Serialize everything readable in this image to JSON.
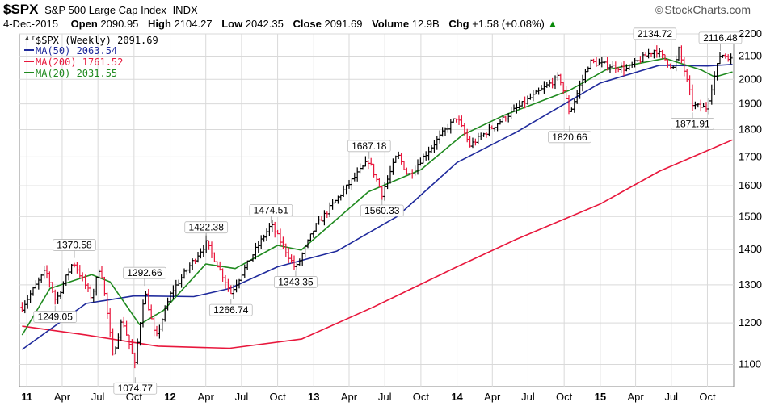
{
  "header": {
    "symbol": "$SPX",
    "name": "S&P 500 Large Cap Index",
    "exchange": "INDX",
    "date": "4-Dec-2015",
    "open_label": "Open",
    "open": "2090.95",
    "high_label": "High",
    "high": "2104.27",
    "low_label": "Low",
    "low": "2042.35",
    "close_label": "Close",
    "close": "2091.69",
    "volume_label": "Volume",
    "volume": "12.9B",
    "chg_label": "Chg",
    "chg": "+1.58 (+0.08%)",
    "chg_arrow": "▲"
  },
  "brand": {
    "text": "StockCharts.com",
    "icon": "copyright-icon"
  },
  "colors": {
    "up": "#000000",
    "down": "#e8173c",
    "ma50": "#1f2a9c",
    "ma200": "#e8173c",
    "ma20": "#1f8a1f",
    "grid": "#d9d9d9",
    "chg_up": "#0a8a0a"
  },
  "legend": [
    {
      "label": "$SPX (Weekly) 2091.69",
      "icon": "candlestick-icon"
    },
    {
      "label": "MA(50) 2063.54",
      "icon": "line-swatch-icon"
    },
    {
      "label": "MA(200) 1761.52",
      "icon": "line-swatch-icon"
    },
    {
      "label": "MA(20) 2031.55",
      "icon": "line-swatch-icon"
    }
  ],
  "chart_data": {
    "type": "candlestick",
    "scale": "log",
    "ylim": [
      1050,
      2200
    ],
    "xlim": [
      "2010-12-13",
      "2015-12-07"
    ],
    "y_ticks": [
      1100,
      1200,
      1300,
      1400,
      1500,
      1600,
      1700,
      1800,
      1900,
      2000,
      2100,
      2200
    ],
    "x_ticks": [
      {
        "label": "11",
        "date": "2011-01-01",
        "bold": true
      },
      {
        "label": "Apr",
        "date": "2011-04-01"
      },
      {
        "label": "Jul",
        "date": "2011-07-01"
      },
      {
        "label": "Oct",
        "date": "2011-10-01"
      },
      {
        "label": "12",
        "date": "2012-01-01",
        "bold": true
      },
      {
        "label": "Apr",
        "date": "2012-04-01"
      },
      {
        "label": "Jul",
        "date": "2012-07-01"
      },
      {
        "label": "Oct",
        "date": "2012-10-01"
      },
      {
        "label": "13",
        "date": "2013-01-01",
        "bold": true
      },
      {
        "label": "Apr",
        "date": "2013-04-01"
      },
      {
        "label": "Jul",
        "date": "2013-07-01"
      },
      {
        "label": "Oct",
        "date": "2013-10-01"
      },
      {
        "label": "14",
        "date": "2014-01-01",
        "bold": true
      },
      {
        "label": "Apr",
        "date": "2014-04-01"
      },
      {
        "label": "Jul",
        "date": "2014-07-01"
      },
      {
        "label": "Oct",
        "date": "2014-10-01"
      },
      {
        "label": "15",
        "date": "2015-01-01",
        "bold": true
      },
      {
        "label": "Apr",
        "date": "2015-04-01"
      },
      {
        "label": "Jul",
        "date": "2015-07-01"
      },
      {
        "label": "Oct",
        "date": "2015-10-01"
      }
    ],
    "price_path": [
      [
        "2010-12-20",
        1240
      ],
      [
        "2011-02-18",
        1340
      ],
      [
        "2011-03-16",
        1256
      ],
      [
        "2011-04-29",
        1365
      ],
      [
        "2011-06-15",
        1265
      ],
      [
        "2011-07-07",
        1356
      ],
      [
        "2011-08-08",
        1119
      ],
      [
        "2011-09-01",
        1210
      ],
      [
        "2011-10-03",
        1099
      ],
      [
        "2011-10-28",
        1285
      ],
      [
        "2011-11-25",
        1158
      ],
      [
        "2012-01-03",
        1277
      ],
      [
        "2012-04-02",
        1419
      ],
      [
        "2012-06-04",
        1278
      ],
      [
        "2012-09-14",
        1474
      ],
      [
        "2012-11-16",
        1343
      ],
      [
        "2013-01-02",
        1462
      ],
      [
        "2013-05-21",
        1687
      ],
      [
        "2013-06-24",
        1573
      ],
      [
        "2013-08-02",
        1709
      ],
      [
        "2013-08-30",
        1633
      ],
      [
        "2013-12-31",
        1848
      ],
      [
        "2014-02-03",
        1741
      ],
      [
        "2014-09-19",
        2011
      ],
      [
        "2014-10-15",
        1862
      ],
      [
        "2014-12-05",
        2075
      ],
      [
        "2015-03-10",
        2044
      ],
      [
        "2015-05-21",
        2130
      ],
      [
        "2015-07-08",
        2044
      ],
      [
        "2015-07-20",
        2128
      ],
      [
        "2015-08-25",
        1893
      ],
      [
        "2015-09-29",
        1884
      ],
      [
        "2015-11-03",
        2109
      ],
      [
        "2015-12-04",
        2091.69
      ]
    ],
    "series": [
      {
        "name": "MA(50)",
        "values": [
          [
            "2010-12-20",
            1135
          ],
          [
            "2011-06-01",
            1250
          ],
          [
            "2011-10-01",
            1270
          ],
          [
            "2012-03-01",
            1268
          ],
          [
            "2012-06-01",
            1290
          ],
          [
            "2012-10-01",
            1350
          ],
          [
            "2013-03-01",
            1395
          ],
          [
            "2013-08-01",
            1500
          ],
          [
            "2014-01-01",
            1680
          ],
          [
            "2014-06-01",
            1790
          ],
          [
            "2015-01-01",
            1985
          ],
          [
            "2015-06-01",
            2060
          ],
          [
            "2015-10-01",
            2057
          ],
          [
            "2015-12-04",
            2063.54
          ]
        ]
      },
      {
        "name": "MA(200)",
        "values": [
          [
            "2010-12-20",
            1192
          ],
          [
            "2011-06-01",
            1170
          ],
          [
            "2011-12-01",
            1143
          ],
          [
            "2012-06-01",
            1138
          ],
          [
            "2012-12-01",
            1160
          ],
          [
            "2013-06-01",
            1240
          ],
          [
            "2014-01-01",
            1350
          ],
          [
            "2014-06-01",
            1430
          ],
          [
            "2015-01-01",
            1540
          ],
          [
            "2015-06-01",
            1650
          ],
          [
            "2015-12-04",
            1761.52
          ]
        ]
      },
      {
        "name": "MA(20)",
        "values": [
          [
            "2010-12-20",
            1170
          ],
          [
            "2011-03-01",
            1290
          ],
          [
            "2011-06-15",
            1328
          ],
          [
            "2011-08-01",
            1308
          ],
          [
            "2011-10-15",
            1196
          ],
          [
            "2011-12-15",
            1232
          ],
          [
            "2012-04-01",
            1358
          ],
          [
            "2012-06-15",
            1345
          ],
          [
            "2012-10-01",
            1412
          ],
          [
            "2012-11-30",
            1398
          ],
          [
            "2013-05-20",
            1580
          ],
          [
            "2013-10-01",
            1655
          ],
          [
            "2014-01-15",
            1780
          ],
          [
            "2014-05-01",
            1855
          ],
          [
            "2014-10-15",
            1955
          ],
          [
            "2015-01-15",
            2040
          ],
          [
            "2015-06-15",
            2090
          ],
          [
            "2015-09-15",
            2040
          ],
          [
            "2015-10-20",
            2010
          ],
          [
            "2015-12-04",
            2031.55
          ]
        ]
      }
    ],
    "annotations": [
      {
        "label": "1370.58",
        "date": "2011-05-02",
        "value": 1370.58,
        "pos": "above"
      },
      {
        "label": "1249.05",
        "date": "2011-03-14",
        "value": 1249.05,
        "pos": "below"
      },
      {
        "label": "1292.66",
        "date": "2011-10-28",
        "value": 1292.66,
        "pos": "above"
      },
      {
        "label": "1074.77",
        "date": "2011-10-04",
        "value": 1074.77,
        "pos": "below"
      },
      {
        "label": "1422.38",
        "date": "2012-04-02",
        "value": 1422.38,
        "pos": "above"
      },
      {
        "label": "1266.74",
        "date": "2012-06-04",
        "value": 1266.74,
        "pos": "below"
      },
      {
        "label": "1474.51",
        "date": "2012-09-14",
        "value": 1474.51,
        "pos": "above"
      },
      {
        "label": "1343.35",
        "date": "2012-11-16",
        "value": 1343.35,
        "pos": "below"
      },
      {
        "label": "1687.18",
        "date": "2013-05-22",
        "value": 1687.18,
        "pos": "above"
      },
      {
        "label": "1560.33",
        "date": "2013-06-24",
        "value": 1560.33,
        "pos": "below"
      },
      {
        "label": "1820.66",
        "date": "2014-10-15",
        "value": 1820.66,
        "pos": "below"
      },
      {
        "label": "2134.72",
        "date": "2015-05-20",
        "value": 2134.72,
        "pos": "above"
      },
      {
        "label": "1871.91",
        "date": "2015-08-24",
        "value": 1871.91,
        "pos": "below"
      },
      {
        "label": "2116.48",
        "date": "2015-11-03",
        "value": 2116.48,
        "pos": "above"
      }
    ]
  }
}
